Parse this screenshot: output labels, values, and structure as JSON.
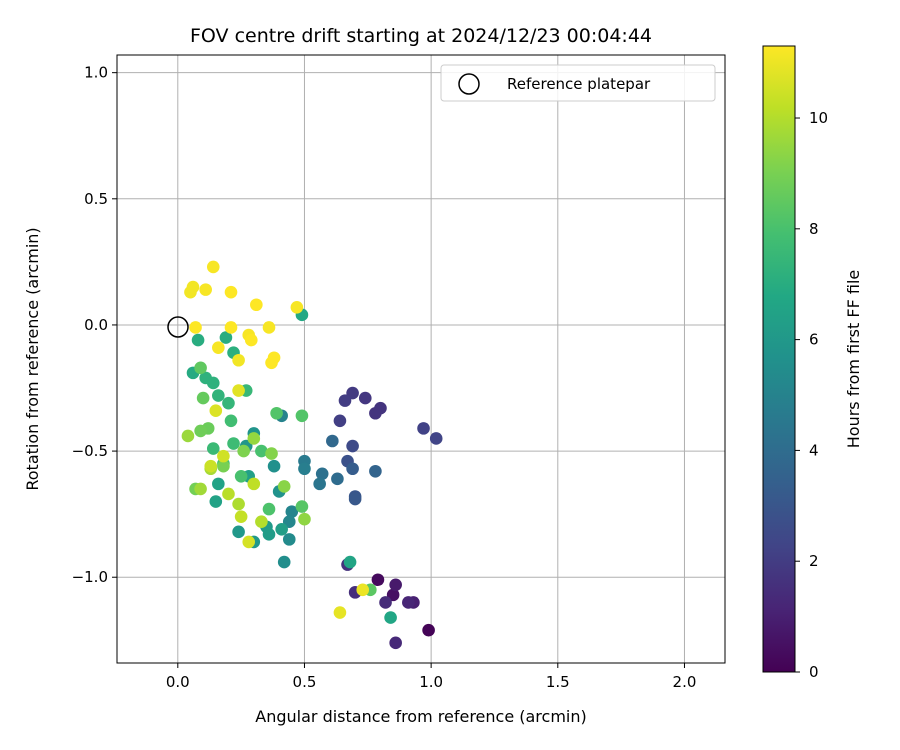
{
  "chart_data": {
    "type": "scatter",
    "title": "FOV centre drift starting at 2024/12/23 00:04:44",
    "xlabel": "Angular distance from reference (arcmin)",
    "ylabel": "Rotation from reference (arcmin)",
    "xlim": [
      -0.24,
      2.16
    ],
    "ylim": [
      -1.34,
      1.07
    ],
    "xticks": [
      0.0,
      0.5,
      1.0,
      1.5,
      2.0
    ],
    "xtick_labels": [
      "0.0",
      "0.5",
      "1.0",
      "1.5",
      "2.0"
    ],
    "yticks": [
      1.0,
      0.5,
      0.0,
      -0.5,
      -1.0
    ],
    "ytick_labels": [
      "1.0",
      "0.5",
      "0.0",
      "−0.5",
      "−1.0"
    ],
    "grid": true,
    "legend": {
      "position": "top-right",
      "entries": [
        {
          "label": "Reference platepar",
          "marker": "open-circle"
        }
      ]
    },
    "reference_point": {
      "x": 0.0,
      "y": 0.0
    },
    "colorbar": {
      "label": "Hours from first FF file",
      "colormap": "viridis",
      "range": [
        0,
        11.3
      ],
      "ticks": [
        0,
        2,
        4,
        6,
        8,
        10
      ],
      "tick_labels": [
        "0",
        "2",
        "4",
        "6",
        "8",
        "10"
      ]
    },
    "points": [
      {
        "x": 0.99,
        "y": -1.21,
        "c": 0.1
      },
      {
        "x": 0.79,
        "y": -1.01,
        "c": 0.3
      },
      {
        "x": 0.85,
        "y": -1.07,
        "c": 0.5
      },
      {
        "x": 0.86,
        "y": -1.03,
        "c": 0.8
      },
      {
        "x": 0.93,
        "y": -1.1,
        "c": 1.0
      },
      {
        "x": 0.91,
        "y": -1.1,
        "c": 1.2
      },
      {
        "x": 0.86,
        "y": -1.26,
        "c": 1.3
      },
      {
        "x": 0.82,
        "y": -1.1,
        "c": 1.4
      },
      {
        "x": 0.7,
        "y": -1.06,
        "c": 1.5
      },
      {
        "x": 0.67,
        "y": -0.95,
        "c": 1.6
      },
      {
        "x": 0.8,
        "y": -0.33,
        "c": 1.7
      },
      {
        "x": 0.78,
        "y": -0.35,
        "c": 1.7
      },
      {
        "x": 0.74,
        "y": -0.29,
        "c": 1.8
      },
      {
        "x": 0.69,
        "y": -0.27,
        "c": 1.9
      },
      {
        "x": 0.66,
        "y": -0.3,
        "c": 2.0
      },
      {
        "x": 0.64,
        "y": -0.38,
        "c": 2.1
      },
      {
        "x": 0.97,
        "y": -0.41,
        "c": 2.2
      },
      {
        "x": 1.02,
        "y": -0.45,
        "c": 2.3
      },
      {
        "x": 0.69,
        "y": -0.48,
        "c": 2.5
      },
      {
        "x": 0.67,
        "y": -0.54,
        "c": 2.8
      },
      {
        "x": 0.7,
        "y": -0.68,
        "c": 3.0
      },
      {
        "x": 0.7,
        "y": -0.69,
        "c": 3.1
      },
      {
        "x": 0.69,
        "y": -0.57,
        "c": 3.3
      },
      {
        "x": 0.78,
        "y": -0.58,
        "c": 3.6
      },
      {
        "x": 0.61,
        "y": -0.46,
        "c": 3.8
      },
      {
        "x": 0.63,
        "y": -0.61,
        "c": 4.0
      },
      {
        "x": 0.57,
        "y": -0.59,
        "c": 4.2
      },
      {
        "x": 0.56,
        "y": -0.63,
        "c": 4.4
      },
      {
        "x": 0.5,
        "y": -0.54,
        "c": 4.6
      },
      {
        "x": 0.5,
        "y": -0.57,
        "c": 4.8
      },
      {
        "x": 0.41,
        "y": -0.36,
        "c": 5.0
      },
      {
        "x": 0.45,
        "y": -0.74,
        "c": 5.1
      },
      {
        "x": 0.44,
        "y": -0.78,
        "c": 5.2
      },
      {
        "x": 0.44,
        "y": -0.85,
        "c": 5.4
      },
      {
        "x": 0.42,
        "y": -0.94,
        "c": 5.5
      },
      {
        "x": 0.38,
        "y": -0.56,
        "c": 5.6
      },
      {
        "x": 0.4,
        "y": -0.66,
        "c": 5.7
      },
      {
        "x": 0.3,
        "y": -0.43,
        "c": 5.8
      },
      {
        "x": 0.27,
        "y": -0.48,
        "c": 5.9
      },
      {
        "x": 0.24,
        "y": -0.82,
        "c": 6.0
      },
      {
        "x": 0.3,
        "y": -0.86,
        "c": 6.0
      },
      {
        "x": 0.35,
        "y": -0.8,
        "c": 6.1
      },
      {
        "x": 0.36,
        "y": -0.83,
        "c": 6.2
      },
      {
        "x": 0.41,
        "y": -0.81,
        "c": 6.3
      },
      {
        "x": 0.28,
        "y": -0.6,
        "c": 6.4
      },
      {
        "x": 0.16,
        "y": -0.63,
        "c": 6.5
      },
      {
        "x": 0.15,
        "y": -0.7,
        "c": 6.5
      },
      {
        "x": 0.68,
        "y": -0.94,
        "c": 6.6
      },
      {
        "x": 0.84,
        "y": -1.16,
        "c": 6.7
      },
      {
        "x": 0.49,
        "y": 0.04,
        "c": 6.8
      },
      {
        "x": 0.06,
        "y": -0.19,
        "c": 6.9
      },
      {
        "x": 0.08,
        "y": -0.06,
        "c": 7.0
      },
      {
        "x": 0.19,
        "y": -0.05,
        "c": 7.0
      },
      {
        "x": 0.22,
        "y": -0.11,
        "c": 7.1
      },
      {
        "x": 0.11,
        "y": -0.21,
        "c": 7.2
      },
      {
        "x": 0.14,
        "y": -0.23,
        "c": 7.2
      },
      {
        "x": 0.16,
        "y": -0.28,
        "c": 7.3
      },
      {
        "x": 0.2,
        "y": -0.31,
        "c": 7.4
      },
      {
        "x": 0.27,
        "y": -0.26,
        "c": 7.5
      },
      {
        "x": 0.14,
        "y": -0.49,
        "c": 7.6
      },
      {
        "x": 0.22,
        "y": -0.47,
        "c": 7.7
      },
      {
        "x": 0.21,
        "y": -0.38,
        "c": 7.8
      },
      {
        "x": 0.18,
        "y": -0.55,
        "c": 7.9
      },
      {
        "x": 0.33,
        "y": -0.5,
        "c": 8.0
      },
      {
        "x": 0.25,
        "y": -0.6,
        "c": 8.0
      },
      {
        "x": 0.36,
        "y": -0.73,
        "c": 8.1
      },
      {
        "x": 0.39,
        "y": -0.35,
        "c": 8.2
      },
      {
        "x": 0.49,
        "y": -0.36,
        "c": 8.2
      },
      {
        "x": 0.49,
        "y": -0.72,
        "c": 8.3
      },
      {
        "x": 0.76,
        "y": -1.05,
        "c": 8.4
      },
      {
        "x": 0.09,
        "y": -0.17,
        "c": 8.5
      },
      {
        "x": 0.1,
        "y": -0.29,
        "c": 8.6
      },
      {
        "x": 0.12,
        "y": -0.41,
        "c": 8.7
      },
      {
        "x": 0.09,
        "y": -0.42,
        "c": 8.8
      },
      {
        "x": 0.07,
        "y": -0.65,
        "c": 8.9
      },
      {
        "x": 0.18,
        "y": -0.56,
        "c": 9.0
      },
      {
        "x": 0.26,
        "y": -0.5,
        "c": 9.1
      },
      {
        "x": 0.37,
        "y": -0.51,
        "c": 9.2
      },
      {
        "x": 0.42,
        "y": -0.64,
        "c": 9.3
      },
      {
        "x": 0.5,
        "y": -0.77,
        "c": 9.4
      },
      {
        "x": 0.3,
        "y": -0.45,
        "c": 9.5
      },
      {
        "x": 0.04,
        "y": -0.44,
        "c": 9.6
      },
      {
        "x": 0.09,
        "y": -0.65,
        "c": 9.7
      },
      {
        "x": 0.13,
        "y": -0.57,
        "c": 9.8
      },
      {
        "x": 0.24,
        "y": -0.71,
        "c": 9.9
      },
      {
        "x": 0.33,
        "y": -0.78,
        "c": 10.0
      },
      {
        "x": 0.2,
        "y": -0.67,
        "c": 10.1
      },
      {
        "x": 0.3,
        "y": -0.63,
        "c": 10.2
      },
      {
        "x": 0.25,
        "y": -0.76,
        "c": 10.3
      },
      {
        "x": 0.13,
        "y": -0.56,
        "c": 10.4
      },
      {
        "x": 0.18,
        "y": -0.52,
        "c": 10.5
      },
      {
        "x": 0.28,
        "y": -0.86,
        "c": 10.6
      },
      {
        "x": 0.15,
        "y": -0.34,
        "c": 10.7
      },
      {
        "x": 0.24,
        "y": -0.26,
        "c": 10.8
      },
      {
        "x": 0.64,
        "y": -1.14,
        "c": 10.9
      },
      {
        "x": 0.73,
        "y": -1.05,
        "c": 11.0
      },
      {
        "x": 0.05,
        "y": 0.13,
        "c": 11.1
      },
      {
        "x": 0.06,
        "y": 0.15,
        "c": 11.1
      },
      {
        "x": 0.11,
        "y": 0.14,
        "c": 11.2
      },
      {
        "x": 0.14,
        "y": 0.23,
        "c": 11.2
      },
      {
        "x": 0.21,
        "y": 0.13,
        "c": 11.3
      },
      {
        "x": 0.31,
        "y": 0.08,
        "c": 11.3
      },
      {
        "x": 0.47,
        "y": 0.07,
        "c": 11.2
      },
      {
        "x": 0.07,
        "y": -0.01,
        "c": 11.3
      },
      {
        "x": 0.21,
        "y": -0.01,
        "c": 11.3
      },
      {
        "x": 0.28,
        "y": -0.04,
        "c": 11.2
      },
      {
        "x": 0.29,
        "y": -0.06,
        "c": 11.3
      },
      {
        "x": 0.36,
        "y": -0.01,
        "c": 11.2
      },
      {
        "x": 0.38,
        "y": -0.13,
        "c": 11.3
      },
      {
        "x": 0.37,
        "y": -0.15,
        "c": 11.3
      },
      {
        "x": 0.16,
        "y": -0.09,
        "c": 11.2
      },
      {
        "x": 0.24,
        "y": -0.14,
        "c": 11.1
      }
    ]
  }
}
